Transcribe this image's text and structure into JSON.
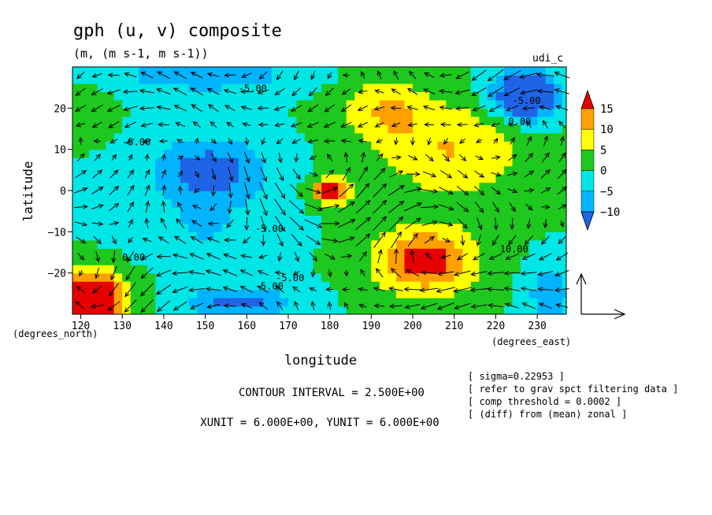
{
  "chart_data": {
    "type": "heatmap",
    "title": "gph (u, v) composite",
    "subtitle": "(m, (m s-1, m s-1))",
    "corner_label": "udi_c",
    "xlabel": "longitude",
    "ylabel": "latitude",
    "x_unit_label": "(degrees_east)",
    "y_unit_label": "(degrees_north)",
    "xlim": [
      118,
      237
    ],
    "ylim": [
      -30,
      30
    ],
    "x_ticks": [
      {
        "value": 120,
        "label": "120"
      },
      {
        "value": 130,
        "label": "130"
      },
      {
        "value": 140,
        "label": "140"
      },
      {
        "value": 150,
        "label": "150"
      },
      {
        "value": 160,
        "label": "160"
      },
      {
        "value": 170,
        "label": "170"
      },
      {
        "value": 180,
        "label": "180"
      },
      {
        "value": 190,
        "label": "190"
      },
      {
        "value": 200,
        "label": "200"
      },
      {
        "value": 210,
        "label": "210"
      },
      {
        "value": 220,
        "label": "220"
      },
      {
        "value": 230,
        "label": "230"
      }
    ],
    "y_ticks": [
      {
        "value": 20,
        "label": "20"
      },
      {
        "value": 10,
        "label": "10"
      },
      {
        "value": 0,
        "label": "0"
      },
      {
        "value": -10,
        "label": "−10"
      },
      {
        "value": -20,
        "label": "−20"
      }
    ],
    "colorbar": {
      "levels": [
        -15,
        -10,
        -5,
        0,
        5,
        10,
        15,
        20
      ],
      "labels": [
        "15",
        "10",
        "5",
        "0",
        "−5",
        "−10"
      ],
      "colors": [
        "#1f64e6",
        "#00b4ff",
        "#00e6e6",
        "#1ec81e",
        "#ffff00",
        "#ffa000",
        "#e60000"
      ]
    },
    "contour_interval_text": "CONTOUR INTERVAL = 2.500E+00",
    "units_text": "XUNIT = 6.000E+00, YUNIT = 6.000E+00",
    "notes": [
      "[ sigma=0.22953 ]",
      "[ refer to grav spct filtering data ]",
      "[ comp threshold = 0.0002 ]",
      "[ (diff) from (mean) zonal ]"
    ],
    "contour_labels": [
      {
        "x": 158,
        "y": 24,
        "text": "-5.00"
      },
      {
        "x": 130,
        "y": 11,
        "text": "-5.00"
      },
      {
        "x": 162,
        "y": -10,
        "text": "-5.00"
      },
      {
        "x": 130,
        "y": -17,
        "text": "0.00"
      },
      {
        "x": 162,
        "y": -24,
        "text": "-5.00"
      },
      {
        "x": 167,
        "y": -22,
        "text": "-5.00"
      },
      {
        "x": 224,
        "y": 21,
        "text": "-5.00"
      },
      {
        "x": 223,
        "y": 16,
        "text": "0.00"
      },
      {
        "x": 221,
        "y": -15,
        "text": "10.00"
      }
    ],
    "field_centers": [
      {
        "x": 122,
        "y": -26,
        "amp": 30,
        "sx": 8,
        "sy": 6
      },
      {
        "x": 180,
        "y": 0,
        "amp": 24,
        "sx": 4,
        "sy": 3
      },
      {
        "x": 203,
        "y": -17,
        "amp": 18,
        "sx": 12,
        "sy": 8
      },
      {
        "x": 210,
        "y": 10,
        "amp": 10,
        "sx": 18,
        "sy": 12
      },
      {
        "x": 193,
        "y": 20,
        "amp": 9,
        "sx": 10,
        "sy": 8
      },
      {
        "x": 227,
        "y": 23,
        "amp": -22,
        "sx": 8,
        "sy": 6
      },
      {
        "x": 151,
        "y": 5,
        "amp": -13,
        "sx": 14,
        "sy": 8
      },
      {
        "x": 158,
        "y": -27,
        "amp": -12,
        "sx": 12,
        "sy": 4
      },
      {
        "x": 150,
        "y": 28,
        "amp": -9,
        "sx": 22,
        "sy": 4
      },
      {
        "x": 233,
        "y": -25,
        "amp": -10,
        "sx": 5,
        "sy": 7
      },
      {
        "x": 150,
        "y": -10,
        "amp": -5,
        "sx": 15,
        "sy": 8
      },
      {
        "x": 122,
        "y": 20,
        "amp": 4,
        "sx": 5,
        "sy": 6
      }
    ],
    "vortices": [
      {
        "x": 122,
        "y": -26,
        "s": -1.2
      },
      {
        "x": 180,
        "y": 0,
        "s": 1.6
      },
      {
        "x": 203,
        "y": -17,
        "s": -1.4
      },
      {
        "x": 227,
        "y": 23,
        "s": 1.3
      },
      {
        "x": 151,
        "y": 5,
        "s": -1.0
      }
    ],
    "grid": false
  }
}
